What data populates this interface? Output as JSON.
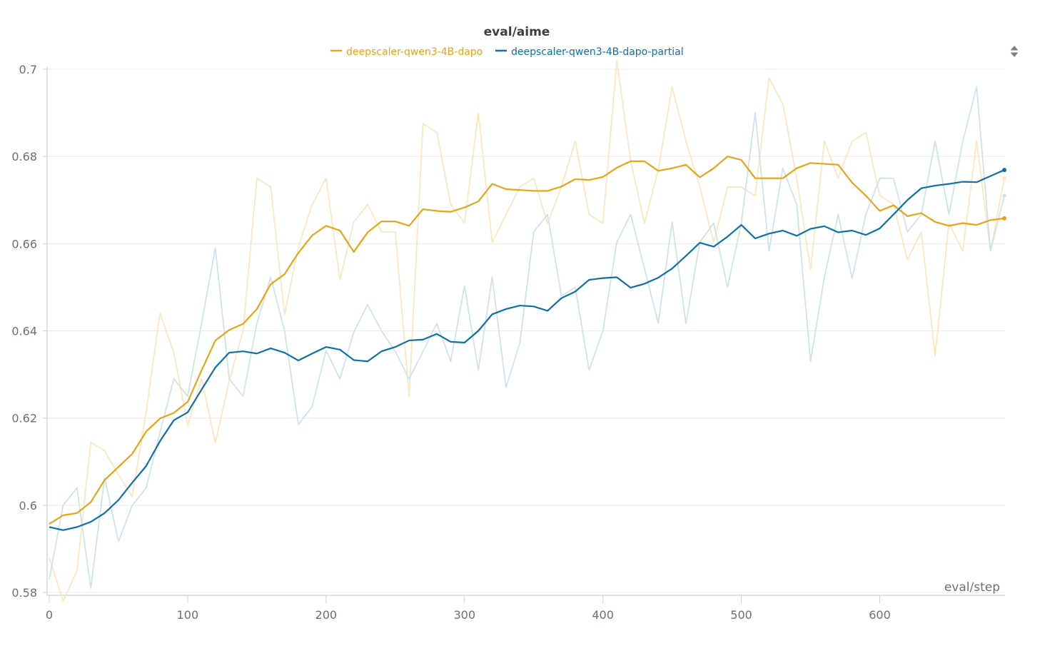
{
  "colors": {
    "series_a": "#e8a317",
    "series_a_raw": "#fbe6be",
    "series_b": "#0f6fa6",
    "series_b_raw": "#cde3ec",
    "background": "#ffffff"
  },
  "controls": {
    "sort_icon": "sort-updown-icon"
  },
  "chart_data": {
    "type": "line",
    "title": "eval/aime",
    "xlabel": "eval/step",
    "ylabel": "",
    "xlim": [
      0,
      690
    ],
    "ylim": [
      0.58,
      0.7
    ],
    "xticks": [
      0,
      100,
      200,
      300,
      400,
      500,
      600
    ],
    "xtick_labels": [
      "0",
      "100",
      "200",
      "300",
      "400",
      "500",
      "600"
    ],
    "yticks": [
      0.58,
      0.6,
      0.62,
      0.64,
      0.66,
      0.68,
      0.7
    ],
    "ytick_labels": [
      "0.58",
      "0.6",
      "0.62",
      "0.64",
      "0.66",
      "0.68",
      "0.7"
    ],
    "legend_position": "top-center",
    "grid": true,
    "x": [
      0,
      10,
      20,
      30,
      40,
      50,
      60,
      70,
      80,
      90,
      100,
      110,
      120,
      130,
      140,
      150,
      160,
      170,
      180,
      190,
      200,
      210,
      220,
      230,
      240,
      250,
      260,
      270,
      280,
      290,
      300,
      310,
      320,
      330,
      340,
      350,
      360,
      370,
      380,
      390,
      400,
      410,
      420,
      430,
      440,
      450,
      460,
      470,
      480,
      490,
      500,
      510,
      520,
      530,
      540,
      550,
      560,
      570,
      580,
      590,
      600,
      610,
      620,
      630,
      640,
      650,
      660,
      670,
      680,
      690
    ],
    "series": [
      {
        "name": "deepscaler-qwen3-4B-dapo",
        "smoothed": [
          0.5957,
          0.5977,
          0.5982,
          0.6007,
          0.6058,
          0.6088,
          0.6118,
          0.6169,
          0.6199,
          0.6212,
          0.6237,
          0.6309,
          0.6378,
          0.6402,
          0.6416,
          0.645,
          0.6507,
          0.653,
          0.6579,
          0.6619,
          0.6641,
          0.663,
          0.6581,
          0.6626,
          0.6651,
          0.6651,
          0.6641,
          0.6679,
          0.6675,
          0.6673,
          0.6683,
          0.6697,
          0.6737,
          0.6725,
          0.6723,
          0.6721,
          0.6721,
          0.6731,
          0.6748,
          0.6746,
          0.6753,
          0.6774,
          0.6789,
          0.6789,
          0.6767,
          0.6773,
          0.6781,
          0.6752,
          0.6773,
          0.68,
          0.6792,
          0.675,
          0.675,
          0.675,
          0.6773,
          0.6785,
          0.6783,
          0.6781,
          0.674,
          0.671,
          0.6675,
          0.6688,
          0.6663,
          0.667,
          0.665,
          0.6641,
          0.6647,
          0.6643,
          0.6654,
          0.6658
        ],
        "raw": [
          0.588,
          0.578,
          0.585,
          0.6145,
          0.6125,
          0.607,
          0.602,
          0.6215,
          0.644,
          0.635,
          0.6183,
          0.629,
          0.6143,
          0.6285,
          0.64,
          0.675,
          0.673,
          0.6437,
          0.6593,
          0.669,
          0.675,
          0.6517,
          0.665,
          0.669,
          0.6627,
          0.6627,
          0.625,
          0.6875,
          0.6855,
          0.669,
          0.6647,
          0.69,
          0.6603,
          0.6667,
          0.673,
          0.675,
          0.6647,
          0.673,
          0.6835,
          0.6667,
          0.6647,
          0.702,
          0.679,
          0.6647,
          0.677,
          0.696,
          0.6835,
          0.673,
          0.6603,
          0.673,
          0.673,
          0.671,
          0.698,
          0.692,
          0.675,
          0.654,
          0.6835,
          0.675,
          0.6835,
          0.6855,
          0.671,
          0.669,
          0.6563,
          0.6627,
          0.6343,
          0.6647,
          0.6583,
          0.6835,
          0.6583,
          0.675
        ]
      },
      {
        "name": "deepscaler-qwen3-4B-dapo-partial",
        "smoothed": [
          0.595,
          0.5943,
          0.595,
          0.5962,
          0.5982,
          0.6012,
          0.6052,
          0.609,
          0.6147,
          0.6195,
          0.6213,
          0.6265,
          0.6316,
          0.635,
          0.6353,
          0.6348,
          0.636,
          0.635,
          0.6332,
          0.6348,
          0.6363,
          0.6357,
          0.6333,
          0.633,
          0.6353,
          0.6363,
          0.6378,
          0.638,
          0.6393,
          0.6375,
          0.6373,
          0.64,
          0.6438,
          0.645,
          0.6458,
          0.6456,
          0.6446,
          0.6475,
          0.649,
          0.6517,
          0.6521,
          0.6523,
          0.6499,
          0.6508,
          0.6522,
          0.6543,
          0.6572,
          0.6602,
          0.6593,
          0.6616,
          0.6643,
          0.6612,
          0.6623,
          0.663,
          0.6618,
          0.6634,
          0.664,
          0.6626,
          0.663,
          0.662,
          0.6635,
          0.6667,
          0.67,
          0.6727,
          0.6733,
          0.6737,
          0.6742,
          0.6741,
          0.6755,
          0.6769
        ],
        "raw": [
          0.583,
          0.6,
          0.604,
          0.581,
          0.6063,
          0.5917,
          0.6,
          0.604,
          0.6167,
          0.629,
          0.625,
          0.6417,
          0.659,
          0.629,
          0.625,
          0.6417,
          0.6523,
          0.64,
          0.6185,
          0.6227,
          0.6355,
          0.629,
          0.6397,
          0.646,
          0.64,
          0.6353,
          0.629,
          0.6353,
          0.6417,
          0.633,
          0.6503,
          0.631,
          0.6523,
          0.627,
          0.6373,
          0.6627,
          0.6667,
          0.648,
          0.65,
          0.631,
          0.64,
          0.6603,
          0.6667,
          0.6543,
          0.6417,
          0.665,
          0.6417,
          0.6603,
          0.6647,
          0.65,
          0.6647,
          0.69,
          0.6583,
          0.6773,
          0.669,
          0.633,
          0.6523,
          0.6667,
          0.652,
          0.6667,
          0.675,
          0.675,
          0.6627,
          0.6667,
          0.6835,
          0.6667,
          0.6835,
          0.696,
          0.6583,
          0.671
        ]
      }
    ]
  }
}
